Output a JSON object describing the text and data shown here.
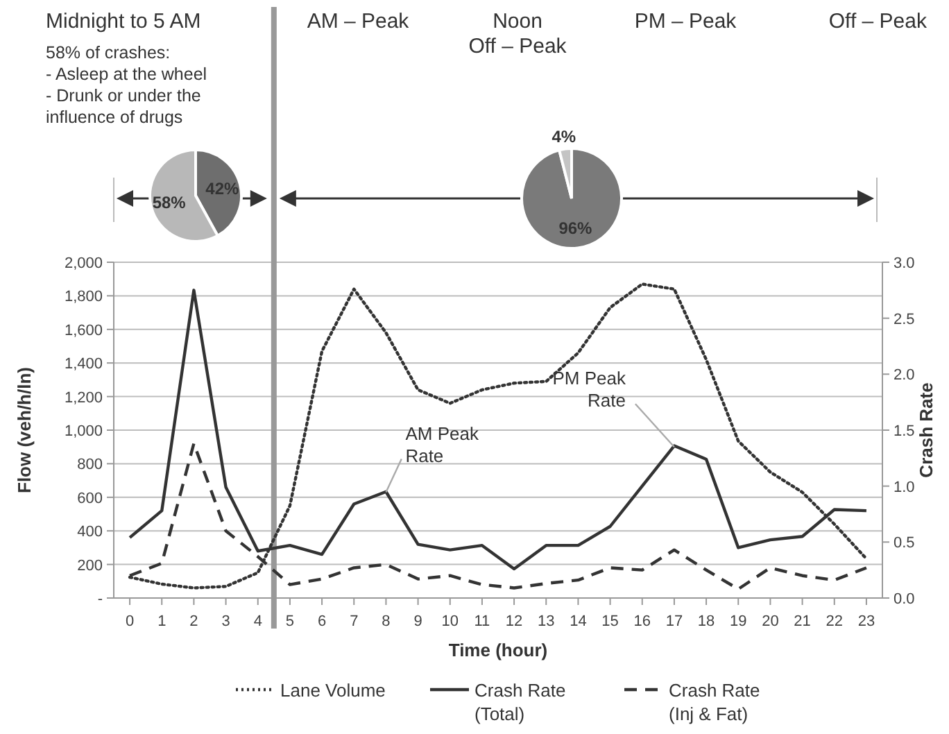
{
  "chart_data": [
    {
      "type": "line",
      "xlabel": "Time (hour)",
      "ylabel": "Flow (veh/h/ln)",
      "y2label": "Crash Rate",
      "x": [
        0,
        1,
        2,
        3,
        4,
        5,
        6,
        7,
        8,
        9,
        10,
        11,
        12,
        13,
        14,
        15,
        16,
        17,
        18,
        19,
        20,
        21,
        22,
        23
      ],
      "xlim": [
        -0.5,
        23.5
      ],
      "xticks": [
        0,
        1,
        2,
        3,
        4,
        5,
        6,
        7,
        8,
        9,
        10,
        11,
        12,
        13,
        14,
        15,
        16,
        17,
        18,
        19,
        20,
        21,
        22,
        23
      ],
      "ylim": [
        0,
        2000
      ],
      "yticks": [
        {
          "value": 0,
          "label": "-"
        },
        200,
        400,
        600,
        800,
        {
          "value": 1000,
          "label": "1,000"
        },
        {
          "value": 1200,
          "label": "1,200"
        },
        {
          "value": 1400,
          "label": "1,400"
        },
        {
          "value": 1600,
          "label": "1,600"
        },
        {
          "value": 1800,
          "label": "1,800"
        },
        {
          "value": 2000,
          "label": "2,000"
        }
      ],
      "y2lim": [
        0,
        3
      ],
      "y2ticks": [
        {
          "value": 0,
          "label": "0.0"
        },
        {
          "value": 0.5,
          "label": "0.5"
        },
        {
          "value": 1,
          "label": "1.0"
        },
        {
          "value": 1.5,
          "label": "1.5"
        },
        {
          "value": 2,
          "label": "2.0"
        },
        {
          "value": 2.5,
          "label": "2.5"
        },
        {
          "value": 3,
          "label": "3.0"
        }
      ],
      "grid": "y",
      "legend": "bottom",
      "series": [
        {
          "name": "Lane Volume",
          "color": "#333333",
          "line_style": "dotted",
          "values": [
            124,
            83,
            60,
            69,
            151,
            550,
            1470,
            1840,
            1580,
            1240,
            1160,
            1240,
            1280,
            1290,
            1460,
            1730,
            1870,
            1840,
            1420,
            935,
            750,
            630,
            440,
            234
          ]
        },
        {
          "name": "Crash Rate\n(Total)",
          "color": "#333333",
          "line_style": "solid",
          "axis": "y2",
          "values": [
            0.54,
            0.78,
            2.75,
            0.99,
            0.42,
            0.47,
            0.39,
            0.84,
            0.95,
            0.48,
            0.43,
            0.47,
            0.26,
            0.47,
            0.47,
            0.64,
            1.0,
            1.36,
            1.24,
            0.45,
            0.52,
            0.55,
            0.79,
            0.78
          ]
        },
        {
          "name": "Crash Rate\n(Inj & Fat)",
          "color": "#333333",
          "line_style": "dashed",
          "axis": "y2",
          "values": [
            0.2,
            0.31,
            1.38,
            0.6,
            0.37,
            0.12,
            0.17,
            0.27,
            0.3,
            0.17,
            0.2,
            0.12,
            0.09,
            0.13,
            0.16,
            0.27,
            0.25,
            0.43,
            0.25,
            0.08,
            0.27,
            0.2,
            0.16,
            0.27
          ]
        }
      ],
      "ref_lines": [
        {
          "axis": "x",
          "value": 4.5,
          "color": "#999999"
        }
      ],
      "annotations": [
        {
          "text": "AM Peak\nRate",
          "x": 8,
          "y": 630
        },
        {
          "text": "PM Peak\nRate",
          "x": 17,
          "y": 900
        },
        "Midnight to 5 AM",
        "58% of crashes:\n- Asleep at the wheel\n- Drunk or under the\ninfluence of drugs",
        "AM – Peak",
        "Noon\nOff – Peak",
        "PM – Peak",
        "Off – Peak"
      ]
    },
    {
      "type": "pie",
      "categories": [
        null,
        null
      ],
      "values": [
        42,
        58
      ],
      "colors": [
        "#6e6e6e",
        "#b8b8b8"
      ],
      "value_labels": [
        "42%",
        "58%"
      ]
    },
    {
      "type": "pie",
      "categories": [
        null,
        null
      ],
      "values": [
        96,
        4
      ],
      "colors": [
        "#7a7a7a",
        "#c4c4c4"
      ],
      "value_labels": [
        "96%",
        "4%"
      ]
    }
  ]
}
